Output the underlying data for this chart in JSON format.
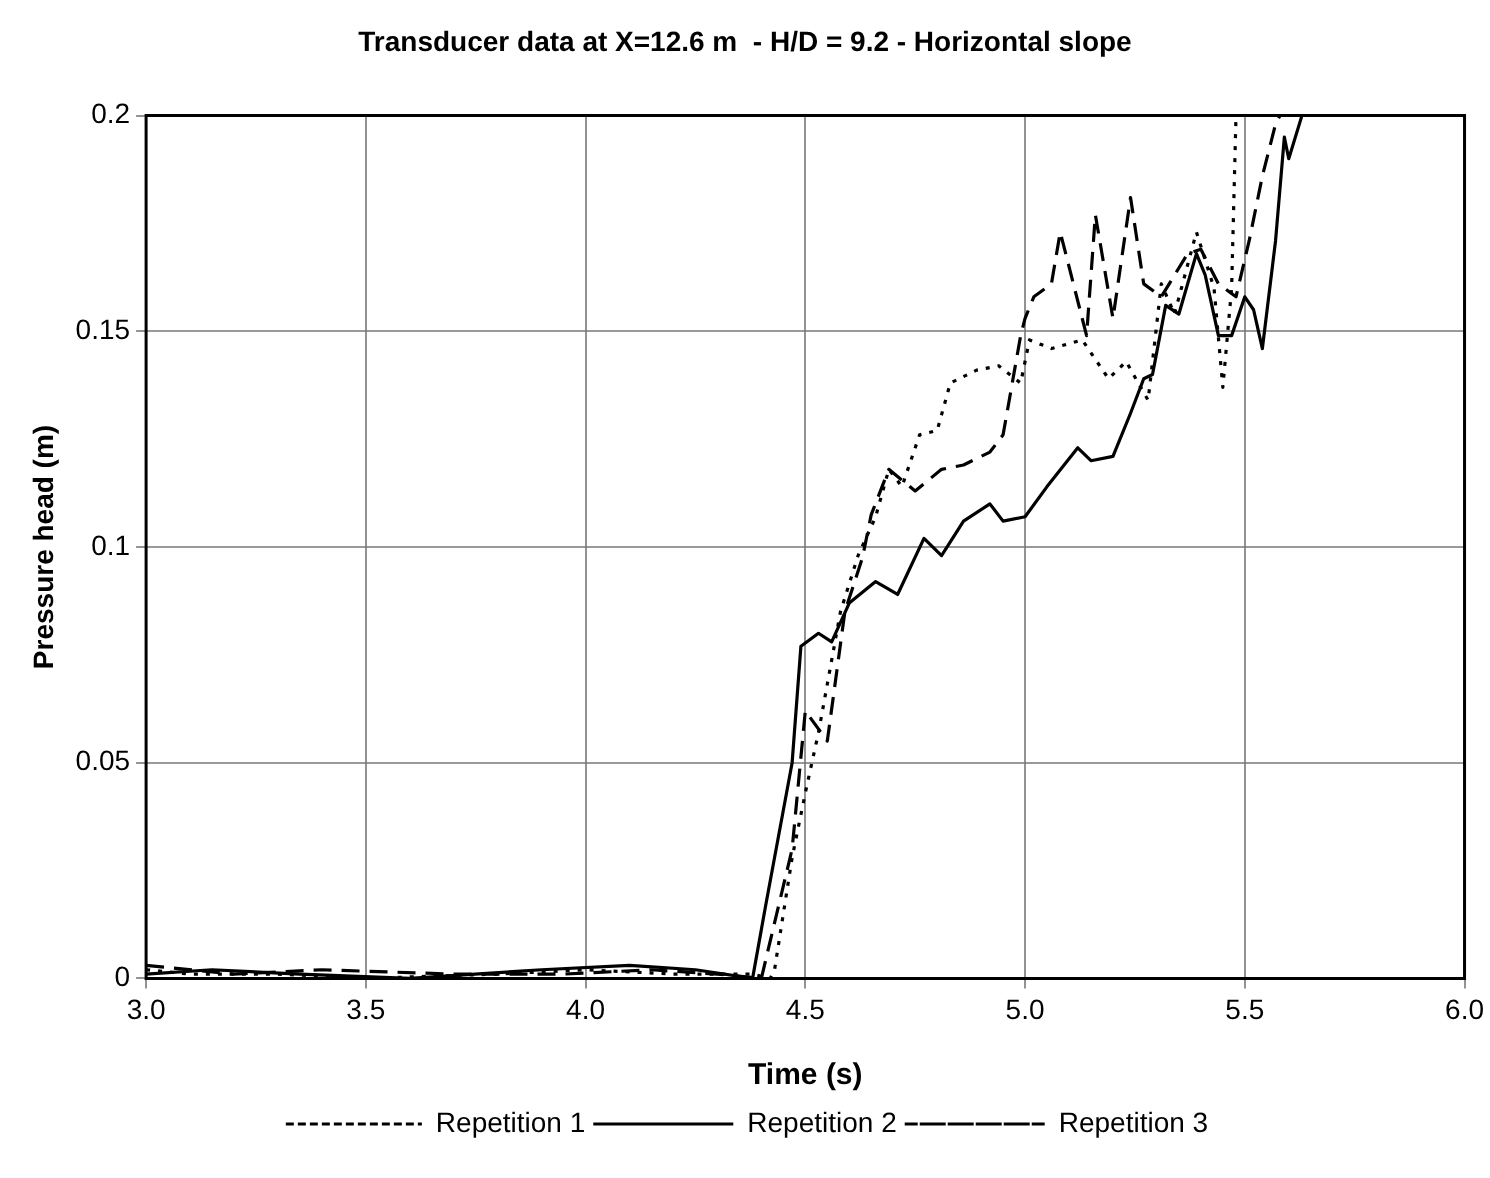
{
  "chart_data": {
    "type": "line",
    "title": "Transducer data at X=12.6 m  - H/D = 9.2 - Horizontal slope",
    "xlabel": "Time (s)",
    "ylabel": "Pressure head (m)",
    "xlim": [
      3,
      6
    ],
    "xticks": [
      {
        "value": 3,
        "label": "3.0"
      },
      {
        "value": 3.5,
        "label": "3.5"
      },
      {
        "value": 4,
        "label": "4.0"
      },
      {
        "value": 4.5,
        "label": "4.5"
      },
      {
        "value": 5,
        "label": "5.0"
      },
      {
        "value": 5.5,
        "label": "5.5"
      },
      {
        "value": 6,
        "label": "6.0"
      }
    ],
    "ylim": [
      0,
      0.2
    ],
    "yticks": [
      0,
      0.05,
      0.1,
      0.15,
      0.2
    ],
    "grid": true,
    "legend": "bottom",
    "marker": "none",
    "series": [
      {
        "name": "Repetition 1",
        "color": "#000000",
        "line_style": "dotted",
        "x": [
          3.0,
          3.1,
          3.3,
          3.5,
          3.8,
          4.0,
          4.2,
          4.38,
          4.42,
          4.43,
          4.47,
          4.5,
          4.53,
          4.58,
          4.62,
          4.66,
          4.69,
          4.72,
          4.76,
          4.8,
          4.83,
          4.89,
          4.94,
          4.99,
          5.01,
          5.06,
          5.13,
          5.19,
          5.23,
          5.28,
          5.31,
          5.34,
          5.39,
          5.43,
          5.45,
          5.47,
          5.48
        ],
        "values": [
          0.002,
          0.001,
          0.001,
          0.0,
          0.001,
          0.002,
          0.001,
          0.001,
          0.0,
          0.002,
          0.028,
          0.043,
          0.057,
          0.085,
          0.098,
          0.107,
          0.118,
          0.114,
          0.126,
          0.127,
          0.138,
          0.141,
          0.142,
          0.138,
          0.148,
          0.146,
          0.148,
          0.139,
          0.143,
          0.134,
          0.161,
          0.154,
          0.173,
          0.16,
          0.137,
          0.16,
          0.2
        ]
      },
      {
        "name": "Repetition 2",
        "color": "#000000",
        "line_style": "solid",
        "x": [
          3.0,
          3.15,
          3.35,
          3.6,
          3.9,
          4.1,
          4.25,
          4.38,
          4.41,
          4.47,
          4.49,
          4.53,
          4.56,
          4.6,
          4.66,
          4.71,
          4.77,
          4.81,
          4.86,
          4.92,
          4.95,
          5.0,
          5.05,
          5.12,
          5.15,
          5.2,
          5.24,
          5.27,
          5.29,
          5.32,
          5.35,
          5.39,
          5.41,
          5.44,
          5.47,
          5.5,
          5.52,
          5.54,
          5.57,
          5.59,
          5.6,
          5.63
        ],
        "values": [
          0.001,
          0.002,
          0.001,
          0.0,
          0.002,
          0.003,
          0.002,
          0.0,
          0.017,
          0.05,
          0.077,
          0.08,
          0.078,
          0.087,
          0.092,
          0.089,
          0.102,
          0.098,
          0.106,
          0.11,
          0.106,
          0.107,
          0.114,
          0.123,
          0.12,
          0.121,
          0.131,
          0.139,
          0.14,
          0.156,
          0.154,
          0.168,
          0.163,
          0.149,
          0.149,
          0.158,
          0.155,
          0.146,
          0.171,
          0.195,
          0.19,
          0.2
        ]
      },
      {
        "name": "Repetition 3",
        "color": "#000000",
        "line_style": "dashed",
        "x": [
          3.0,
          3.2,
          3.4,
          3.7,
          3.95,
          4.15,
          4.3,
          4.4,
          4.47,
          4.5,
          4.55,
          4.57,
          4.59,
          4.63,
          4.65,
          4.69,
          4.75,
          4.81,
          4.86,
          4.92,
          4.95,
          4.99,
          5.0,
          5.02,
          5.06,
          5.08,
          5.14,
          5.16,
          5.2,
          5.24,
          5.27,
          5.31,
          5.37,
          5.4,
          5.44,
          5.48,
          5.51,
          5.54,
          5.57,
          5.58
        ],
        "values": [
          0.003,
          0.001,
          0.002,
          0.001,
          0.001,
          0.002,
          0.001,
          0.0,
          0.03,
          0.062,
          0.055,
          0.07,
          0.085,
          0.0975,
          0.1075,
          0.118,
          0.113,
          0.118,
          0.119,
          0.122,
          0.126,
          0.149,
          0.153,
          0.158,
          0.161,
          0.173,
          0.149,
          0.177,
          0.153,
          0.181,
          0.161,
          0.158,
          0.168,
          0.169,
          0.161,
          0.158,
          0.171,
          0.186,
          0.198,
          0.2
        ]
      }
    ]
  }
}
